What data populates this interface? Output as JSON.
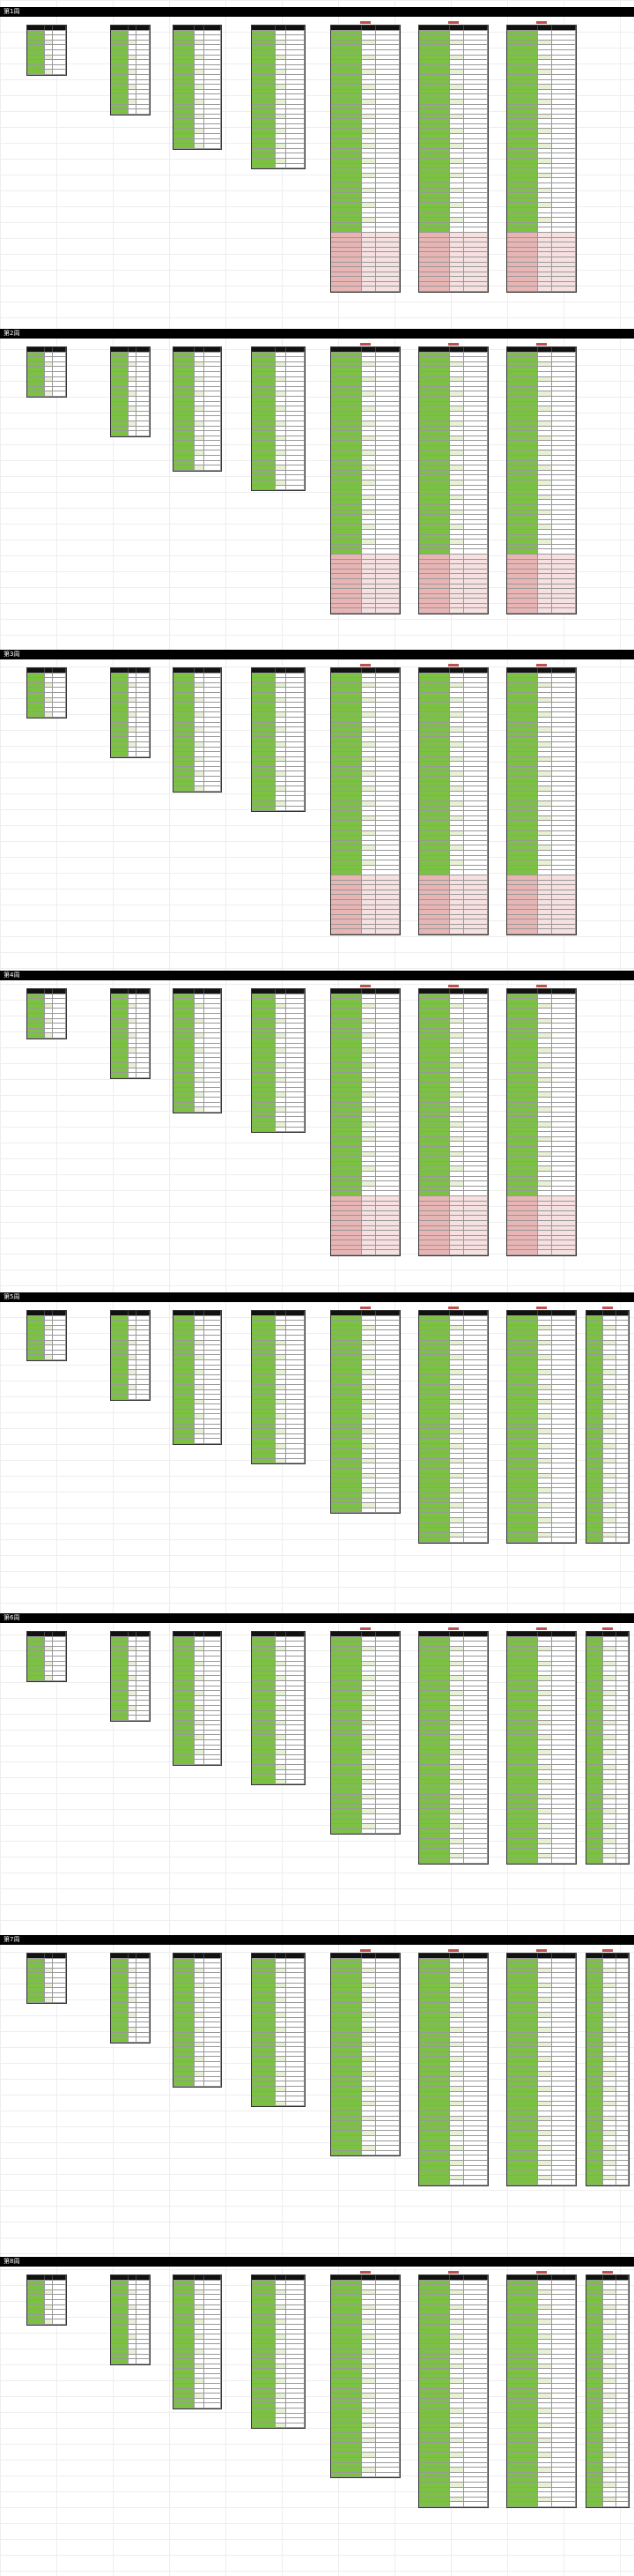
{
  "sections": [
    {
      "label": "第1周"
    },
    {
      "label": "第2周"
    },
    {
      "label": "第3周"
    },
    {
      "label": "第4周"
    },
    {
      "label": "第5周"
    },
    {
      "label": "第6周"
    },
    {
      "label": "第7周"
    },
    {
      "label": "第8周"
    }
  ]
}
